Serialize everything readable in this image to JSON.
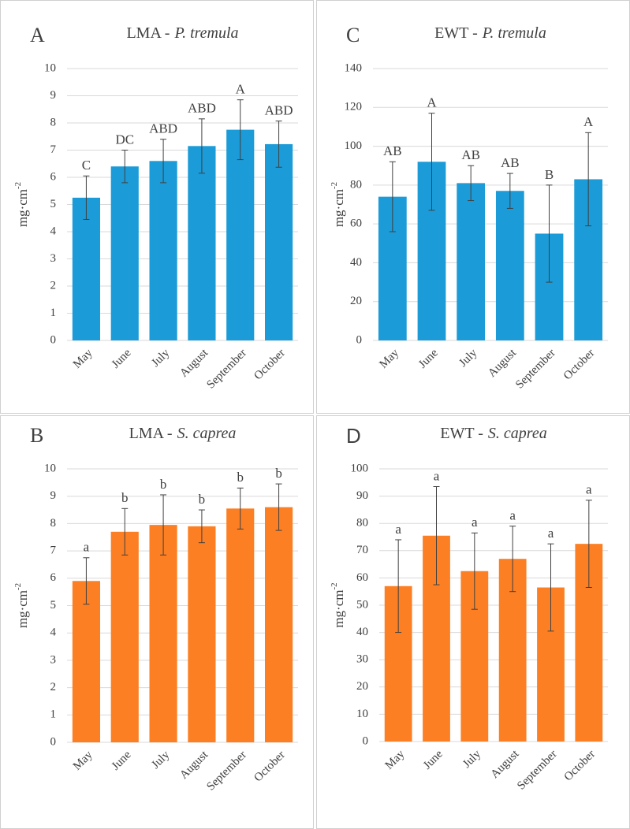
{
  "chart_data": [
    {
      "type": "bar",
      "panel": "A",
      "title": "LMA -",
      "title_species": "P. tremula",
      "ylabel": "mg·cm",
      "ylabel_exponent": "-2",
      "categories": [
        "May",
        "June",
        "July",
        "August",
        "September",
        "October"
      ],
      "values": [
        5.25,
        6.4,
        6.6,
        7.15,
        7.75,
        7.22
      ],
      "errors": [
        0.8,
        0.6,
        0.8,
        1.0,
        1.1,
        0.85
      ],
      "group_labels": [
        "C",
        "DC",
        "ABD",
        "ABD",
        "A",
        "ABD"
      ],
      "color": "#1b9bd7",
      "ylim": [
        0,
        10
      ],
      "yticks": [
        0,
        1,
        2,
        3,
        4,
        5,
        6,
        7,
        8,
        9,
        10
      ],
      "grid": true
    },
    {
      "type": "bar",
      "panel": "C",
      "title": "EWT -",
      "title_species": "P. tremula",
      "ylabel": "mg·cm",
      "ylabel_exponent": "-2",
      "categories": [
        "May",
        "June",
        "July",
        "August",
        "September",
        "October"
      ],
      "values": [
        74,
        92,
        81,
        77,
        55,
        83
      ],
      "errors": [
        18,
        25,
        9,
        9,
        25,
        24
      ],
      "group_labels": [
        "AB",
        "A",
        "AB",
        "AB",
        "B",
        "A"
      ],
      "color": "#1b9bd7",
      "ylim": [
        0,
        140
      ],
      "yticks": [
        0,
        20,
        40,
        60,
        80,
        100,
        120,
        140
      ],
      "grid": true
    },
    {
      "type": "bar",
      "panel": "B",
      "title": "LMA -",
      "title_species": "S. caprea",
      "ylabel": "mg·cm",
      "ylabel_exponent": "-2",
      "categories": [
        "May",
        "June",
        "July",
        "August",
        "September",
        "October"
      ],
      "values": [
        5.9,
        7.7,
        7.95,
        7.9,
        8.55,
        8.6
      ],
      "errors": [
        0.85,
        0.85,
        1.1,
        0.6,
        0.75,
        0.85
      ],
      "group_labels": [
        "a",
        "b",
        "b",
        "b",
        "b",
        "b"
      ],
      "color": "#fd7f23",
      "ylim": [
        0,
        10
      ],
      "yticks": [
        0,
        1,
        2,
        3,
        4,
        5,
        6,
        7,
        8,
        9,
        10
      ],
      "grid": true
    },
    {
      "type": "bar",
      "panel": "D",
      "title": "EWT -",
      "title_species": "S. caprea",
      "ylabel": "mg·cm",
      "ylabel_exponent": "-2",
      "categories": [
        "May",
        "June",
        "July",
        "August",
        "September",
        "October"
      ],
      "values": [
        57,
        75.5,
        62.5,
        67,
        56.5,
        72.5
      ],
      "errors": [
        17,
        18,
        14,
        12,
        16,
        16
      ],
      "group_labels": [
        "a",
        "a",
        "a",
        "a",
        "a",
        "a"
      ],
      "color": "#fd7f23",
      "ylim": [
        0,
        100
      ],
      "yticks": [
        0,
        10,
        20,
        30,
        40,
        50,
        60,
        70,
        80,
        90,
        100
      ],
      "grid": true
    }
  ]
}
